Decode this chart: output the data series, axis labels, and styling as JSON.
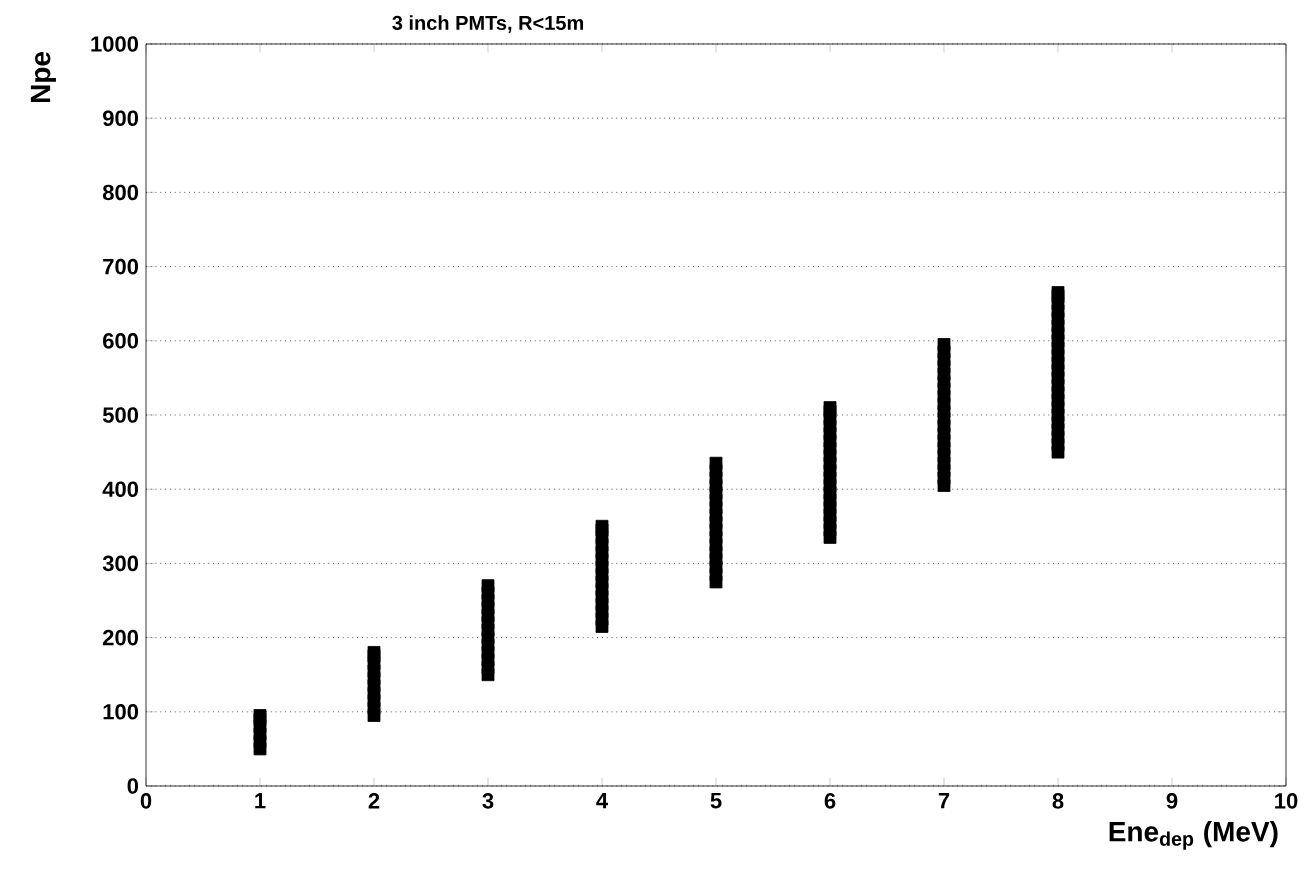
{
  "chart_data": {
    "type": "scatter",
    "title": "3 inch PMTs, R<15m",
    "xlabel": "Ene$_{dep}$  (MeV)",
    "ylabel": "Npe",
    "xlim": [
      0,
      10
    ],
    "ylim": [
      0,
      1000
    ],
    "xticks": [
      0,
      1,
      2,
      3,
      4,
      5,
      6,
      7,
      8,
      9,
      10
    ],
    "yticks": [
      0,
      100,
      200,
      300,
      400,
      500,
      600,
      700,
      800,
      900,
      1000
    ],
    "grid": "y",
    "marker": "square",
    "series": [
      {
        "color": "#000000",
        "x": [
          1,
          1,
          1,
          1,
          1,
          1,
          2,
          2,
          2,
          2,
          2,
          2,
          2,
          2,
          2,
          2,
          3,
          3,
          3,
          3,
          3,
          3,
          3,
          3,
          3,
          3,
          3,
          3,
          3,
          4,
          4,
          4,
          4,
          4,
          4,
          4,
          4,
          4,
          4,
          4,
          4,
          4,
          4,
          4,
          5,
          5,
          5,
          5,
          5,
          5,
          5,
          5,
          5,
          5,
          5,
          5,
          5,
          5,
          5,
          5,
          5,
          6,
          6,
          6,
          6,
          6,
          6,
          6,
          6,
          6,
          6,
          6,
          6,
          6,
          6,
          6,
          6,
          6,
          6,
          6,
          7,
          7,
          7,
          7,
          7,
          7,
          7,
          7,
          7,
          7,
          7,
          7,
          7,
          7,
          7,
          7,
          7,
          7,
          7,
          7,
          8,
          8,
          8,
          8,
          8,
          8,
          8,
          8,
          8,
          8,
          8,
          8,
          8,
          8,
          8,
          8,
          8,
          8,
          8,
          8,
          8,
          8,
          8
        ],
        "values": [
          50,
          60,
          70,
          80,
          90,
          95,
          95,
          105,
          115,
          125,
          135,
          145,
          155,
          165,
          175,
          180,
          150,
          160,
          170,
          180,
          190,
          200,
          210,
          220,
          230,
          240,
          250,
          260,
          270,
          215,
          225,
          235,
          245,
          255,
          265,
          275,
          285,
          295,
          305,
          315,
          325,
          335,
          345,
          350,
          275,
          285,
          295,
          305,
          315,
          325,
          335,
          345,
          355,
          365,
          375,
          385,
          395,
          405,
          415,
          425,
          435,
          335,
          345,
          355,
          365,
          375,
          385,
          395,
          405,
          415,
          425,
          435,
          445,
          455,
          465,
          475,
          485,
          495,
          505,
          510,
          405,
          415,
          425,
          435,
          445,
          455,
          465,
          475,
          485,
          495,
          505,
          515,
          525,
          535,
          545,
          555,
          565,
          575,
          585,
          595,
          450,
          460,
          470,
          480,
          490,
          500,
          510,
          520,
          530,
          540,
          550,
          560,
          570,
          580,
          590,
          600,
          610,
          620,
          630,
          640,
          650,
          660,
          665
        ]
      }
    ]
  }
}
